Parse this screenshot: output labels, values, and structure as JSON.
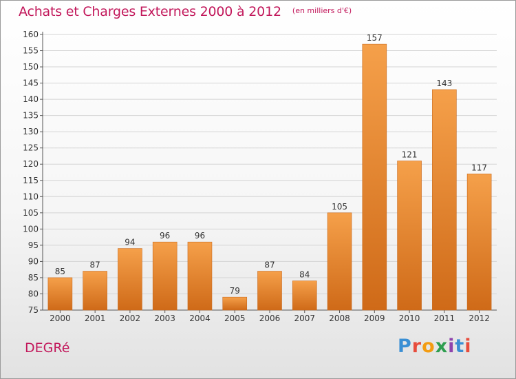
{
  "header": {
    "title": "Achats et Charges Externes 2000 à 2012",
    "unit": "(en milliers d'€)"
  },
  "footer": {
    "commune": "DEGRé",
    "logo": [
      "P",
      "r",
      "o",
      "x",
      "i",
      "t",
      "i"
    ]
  },
  "colors": {
    "accent": "#c2185b",
    "bar_top": "#f5a04a",
    "bar_bottom": "#cf6a18"
  },
  "chart_data": {
    "type": "bar",
    "categories": [
      "2000",
      "2001",
      "2002",
      "2003",
      "2004",
      "2005",
      "2006",
      "2007",
      "2008",
      "2009",
      "2010",
      "2011",
      "2012"
    ],
    "values": [
      85,
      87,
      94,
      96,
      96,
      79,
      87,
      84,
      105,
      157,
      121,
      143,
      117
    ],
    "ylim": [
      75,
      160
    ],
    "yticks": [
      75,
      80,
      85,
      90,
      95,
      100,
      105,
      110,
      115,
      120,
      125,
      130,
      135,
      140,
      145,
      150,
      155,
      160
    ],
    "grid": true,
    "data_labels": true
  }
}
